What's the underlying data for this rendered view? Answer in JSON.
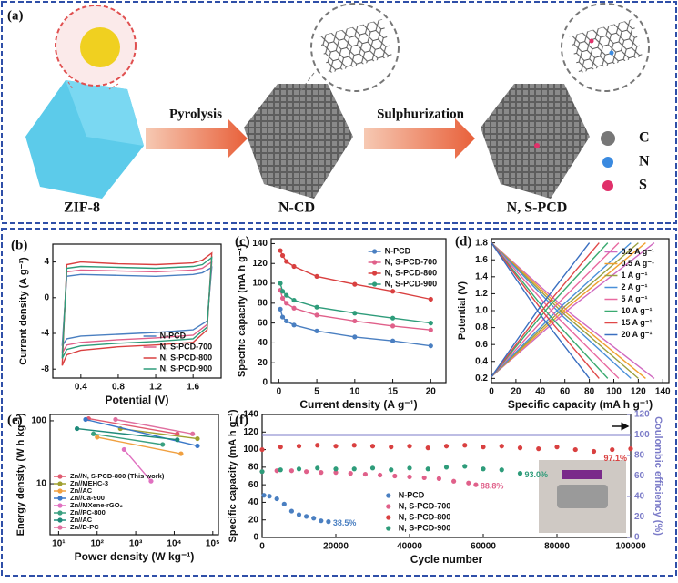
{
  "diagram": {
    "label": "(a)",
    "steps": [
      "Pyrolysis",
      "Sulphurization"
    ],
    "products": [
      "ZIF-8",
      "N-CD",
      "N, S-PCD"
    ],
    "legend": [
      "C",
      "N",
      "S"
    ]
  },
  "chart_data": [
    {
      "type": "line",
      "label": "(b)",
      "xlabel": "Potential (V)",
      "ylabel": "Current density (A g⁻¹)",
      "xlim": [
        0.1,
        1.9
      ],
      "ylim": [
        -9,
        6
      ],
      "xticks": [
        0.4,
        0.8,
        1.2,
        1.6
      ],
      "yticks": [
        -8,
        -4,
        0,
        4
      ],
      "legend": "lower right",
      "series": [
        {
          "name": "N-PCD",
          "color": "#4a7fc1",
          "x": [
            0.2,
            0.25,
            0.4,
            0.8,
            1.2,
            1.6,
            1.75,
            1.8,
            1.7,
            1.6,
            1.2,
            0.8,
            0.4,
            0.25,
            0.2
          ],
          "values": [
            -5.4,
            -4.6,
            -4.3,
            -4.1,
            -3.9,
            -3.6,
            -2.6,
            3.4,
            2.8,
            2.6,
            2.4,
            2.5,
            2.6,
            2.4,
            -5.4
          ]
        },
        {
          "name": "N, S-PCD-700",
          "color": "#e0608a",
          "x": [
            0.2,
            0.25,
            0.4,
            0.8,
            1.2,
            1.6,
            1.75,
            1.8,
            1.7,
            1.6,
            1.2,
            0.8,
            0.4,
            0.25,
            0.2
          ],
          "values": [
            -6.2,
            -5.3,
            -5.0,
            -4.7,
            -4.5,
            -4.2,
            -3.0,
            4.0,
            3.3,
            3.1,
            2.9,
            3.0,
            3.1,
            2.9,
            -6.2
          ]
        },
        {
          "name": "N, S-PCD-800",
          "color": "#d94040",
          "x": [
            0.2,
            0.25,
            0.4,
            0.8,
            1.2,
            1.6,
            1.75,
            1.8,
            1.7,
            1.6,
            1.2,
            0.8,
            0.4,
            0.25,
            0.2
          ],
          "values": [
            -7.6,
            -6.4,
            -5.9,
            -5.5,
            -5.3,
            -5.0,
            -3.6,
            5.0,
            4.2,
            3.9,
            3.7,
            3.8,
            4.0,
            3.7,
            -7.6
          ]
        },
        {
          "name": "N, S-PCD-900",
          "color": "#2e9c7a",
          "x": [
            0.2,
            0.25,
            0.4,
            0.8,
            1.2,
            1.6,
            1.75,
            1.8,
            1.7,
            1.6,
            1.2,
            0.8,
            0.4,
            0.25,
            0.2
          ],
          "values": [
            -6.8,
            -5.8,
            -5.4,
            -5.1,
            -4.9,
            -4.6,
            -3.3,
            4.5,
            3.7,
            3.5,
            3.3,
            3.4,
            3.5,
            3.3,
            -6.8
          ]
        }
      ]
    },
    {
      "type": "line",
      "label": "(c)",
      "xlabel": "Current density (A g⁻¹)",
      "ylabel": "Specific capacity (mA h g⁻¹)",
      "xlim": [
        -1,
        22
      ],
      "ylim": [
        0,
        145
      ],
      "xticks": [
        0,
        5,
        10,
        15,
        20
      ],
      "yticks": [
        0,
        20,
        40,
        60,
        80,
        100,
        120,
        140
      ],
      "legend": "upper right",
      "markers": true,
      "series": [
        {
          "name": "N-PCD",
          "color": "#4a7fc1",
          "x": [
            0.2,
            0.5,
            1,
            2,
            5,
            10,
            15,
            20
          ],
          "values": [
            74,
            66,
            62,
            58,
            52,
            46,
            42,
            37
          ]
        },
        {
          "name": "N, S-PCD-700",
          "color": "#e0608a",
          "x": [
            0.2,
            0.5,
            1,
            2,
            5,
            10,
            15,
            20
          ],
          "values": [
            93,
            85,
            80,
            75,
            68,
            62,
            57,
            53
          ]
        },
        {
          "name": "N, S-PCD-800",
          "color": "#d94040",
          "x": [
            0.2,
            0.5,
            1,
            2,
            5,
            10,
            15,
            20
          ],
          "values": [
            133,
            128,
            122,
            117,
            107,
            99,
            92,
            84
          ]
        },
        {
          "name": "N, S-PCD-900",
          "color": "#2e9c7a",
          "x": [
            0.2,
            0.5,
            1,
            2,
            5,
            10,
            15,
            20
          ],
          "values": [
            100,
            92,
            88,
            83,
            76,
            70,
            65,
            60
          ]
        }
      ]
    },
    {
      "type": "line",
      "label": "(d)",
      "xlabel": "Specific capacity (mA h g⁻¹)",
      "ylabel": "Potential (V)",
      "xlim": [
        0,
        145
      ],
      "ylim": [
        0.15,
        1.85
      ],
      "xticks": [
        0,
        20,
        40,
        60,
        80,
        100,
        120,
        140
      ],
      "yticks": [
        0.2,
        0.4,
        0.6,
        0.8,
        {
          "value": 1,
          "label": "1.0"
        },
        1.2,
        1.4,
        1.6,
        1.8
      ],
      "legend": "upper right",
      "series": [
        {
          "name": "0.2 A g⁻¹",
          "color": "#d06ac0",
          "x": [
            0,
            66,
            133,
            null,
            0,
            66,
            133
          ],
          "values": [
            0.22,
            1.05,
            1.8,
            null,
            1.8,
            0.95,
            0.2
          ]
        },
        {
          "name": "0.5 A g⁻¹",
          "color": "#f0a030",
          "x": [
            0,
            63,
            126,
            null,
            0,
            63,
            126
          ],
          "values": [
            0.22,
            1.05,
            1.8,
            null,
            1.8,
            0.95,
            0.2
          ]
        },
        {
          "name": "1 A g⁻¹",
          "color": "#9aa040",
          "x": [
            0,
            60,
            120,
            null,
            0,
            60,
            120
          ],
          "values": [
            0.22,
            1.05,
            1.8,
            null,
            1.8,
            0.95,
            0.2
          ]
        },
        {
          "name": "2 A g⁻¹",
          "color": "#4a90d9",
          "x": [
            0,
            57,
            114,
            null,
            0,
            57,
            114
          ],
          "values": [
            0.22,
            1.05,
            1.8,
            null,
            1.8,
            0.95,
            0.2
          ]
        },
        {
          "name": "5 A g⁻¹",
          "color": "#e86aa0",
          "x": [
            0,
            52,
            104,
            null,
            0,
            52,
            104
          ],
          "values": [
            0.22,
            1.05,
            1.8,
            null,
            1.8,
            0.95,
            0.2
          ]
        },
        {
          "name": "10 A g⁻¹",
          "color": "#3aaa70",
          "x": [
            0,
            47,
            95,
            null,
            0,
            47,
            95
          ],
          "values": [
            0.22,
            1.05,
            1.8,
            null,
            1.8,
            0.95,
            0.2
          ]
        },
        {
          "name": "15 A g⁻¹",
          "color": "#e04848",
          "x": [
            0,
            44,
            88,
            null,
            0,
            44,
            88
          ],
          "values": [
            0.22,
            1.05,
            1.8,
            null,
            1.8,
            0.95,
            0.2
          ]
        },
        {
          "name": "20 A g⁻¹",
          "color": "#3a6fc0",
          "x": [
            0,
            40,
            80,
            null,
            0,
            40,
            80
          ],
          "values": [
            0.22,
            1.05,
            1.8,
            null,
            1.8,
            0.95,
            0.2
          ]
        }
      ]
    },
    {
      "type": "line",
      "label": "(e)",
      "xlabel": "Power density (W kg⁻¹)",
      "ylabel": "Energy density (W h kg⁻¹)",
      "xscale": "log",
      "yscale": "log",
      "xlim": [
        6,
        140000
      ],
      "ylim": [
        1.55,
        126
      ],
      "xticks": [
        {
          "value": 10,
          "label": "10¹"
        },
        {
          "value": 100,
          "label": "10²"
        },
        {
          "value": 1000,
          "label": "10³"
        },
        {
          "value": 10000,
          "label": "10⁴"
        },
        {
          "value": 100000,
          "label": "10⁵"
        }
      ],
      "yticks": [
        10,
        100
      ],
      "legend": "lower left",
      "markers": true,
      "series": [
        {
          "name": "Zn//N, S-PCD-800 (This work)",
          "color": "#e05a70",
          "x": [
            60,
            12000
          ],
          "values": [
            108,
            62
          ]
        },
        {
          "name": "Zn//MEHC-3",
          "color": "#a0a030",
          "x": [
            400,
            40000
          ],
          "values": [
            75,
            52
          ]
        },
        {
          "name": "Zn//AC",
          "color": "#f0a040",
          "x": [
            100,
            15000
          ],
          "values": [
            55,
            30
          ]
        },
        {
          "name": "Zn//Ca-900",
          "color": "#3a78c8",
          "x": [
            50,
            40000
          ],
          "values": [
            105,
            40
          ]
        },
        {
          "name": "Zn//MXene-rGO₂",
          "color": "#e070c0",
          "x": [
            500,
            2500
          ],
          "values": [
            35,
            11
          ]
        },
        {
          "name": "Zn//PC-800",
          "color": "#3aa080",
          "x": [
            80,
            5000
          ],
          "values": [
            62,
            42
          ]
        },
        {
          "name": "Zn//AC",
          "color": "#1e8a7a",
          "x": [
            30,
            12000
          ],
          "values": [
            75,
            50
          ]
        },
        {
          "name": "Zn//D-PC",
          "color": "#e070a0",
          "x": [
            300,
            30000
          ],
          "values": [
            105,
            62
          ]
        }
      ]
    },
    {
      "type": "scatter",
      "label": "(f)",
      "xlabel": "Cycle number",
      "ylabel": "Specific capacity (mA h g⁻¹)",
      "y2label": "Coulombic efficiency (%)",
      "xlim": [
        0,
        100000
      ],
      "ylim": [
        0,
        140
      ],
      "y2lim": [
        0,
        120
      ],
      "xticks": [
        0,
        20000,
        40000,
        60000,
        80000,
        100000
      ],
      "yticks": [
        0,
        20,
        40,
        60,
        80,
        100,
        120,
        140
      ],
      "y2ticks": [
        0,
        20,
        40,
        60,
        80,
        100,
        120
      ],
      "legend": "lower center",
      "series": [
        {
          "name": "N-PCD",
          "color": "#4a7fc1",
          "retention": "38.5%",
          "x": [
            500,
            2000,
            4000,
            6000,
            8000,
            10000,
            12000,
            14000,
            16000,
            18000
          ],
          "values": [
            48,
            47,
            44,
            38,
            30,
            26,
            24,
            22,
            19,
            18
          ]
        },
        {
          "name": "N, S-PCD-700",
          "color": "#e0608a",
          "retention": "88.8%",
          "x": [
            0,
            4000,
            8000,
            12000,
            16000,
            20000,
            24000,
            28000,
            32000,
            36000,
            40000,
            44000,
            48000,
            52000,
            56000,
            58000
          ],
          "values": [
            75,
            76,
            76,
            75,
            74,
            74,
            73,
            72,
            71,
            70,
            69,
            68,
            67,
            64,
            62,
            60
          ]
        },
        {
          "name": "N, S-PCD-800",
          "color": "#d94040",
          "retention": "97.1%",
          "x": [
            0,
            5000,
            10000,
            15000,
            20000,
            25000,
            30000,
            35000,
            40000,
            45000,
            50000,
            55000,
            60000,
            65000,
            70000,
            75000,
            80000,
            85000,
            90000,
            95000,
            100000
          ],
          "values": [
            100,
            103,
            104,
            105,
            104,
            105,
            104,
            103,
            104,
            102,
            104,
            105,
            103,
            104,
            102,
            101,
            103,
            100,
            98,
            100,
            101
          ]
        },
        {
          "name": "N, S-PCD-900",
          "color": "#2e9c7a",
          "retention": "93.0%",
          "x": [
            0,
            5000,
            10000,
            15000,
            20000,
            25000,
            30000,
            35000,
            40000,
            45000,
            50000,
            55000,
            60000,
            65000,
            70000
          ],
          "values": [
            75,
            77,
            78,
            79,
            78,
            78,
            79,
            77,
            79,
            78,
            80,
            81,
            78,
            77,
            73
          ]
        },
        {
          "axis": "y2",
          "color": "#7b7bc8",
          "x": [
            0,
            10000,
            20000,
            30000,
            40000,
            50000,
            60000,
            70000,
            80000,
            90000,
            100000
          ],
          "values": [
            100,
            100,
            100,
            100,
            100,
            100,
            100,
            100,
            100,
            100,
            100
          ]
        }
      ]
    }
  ]
}
